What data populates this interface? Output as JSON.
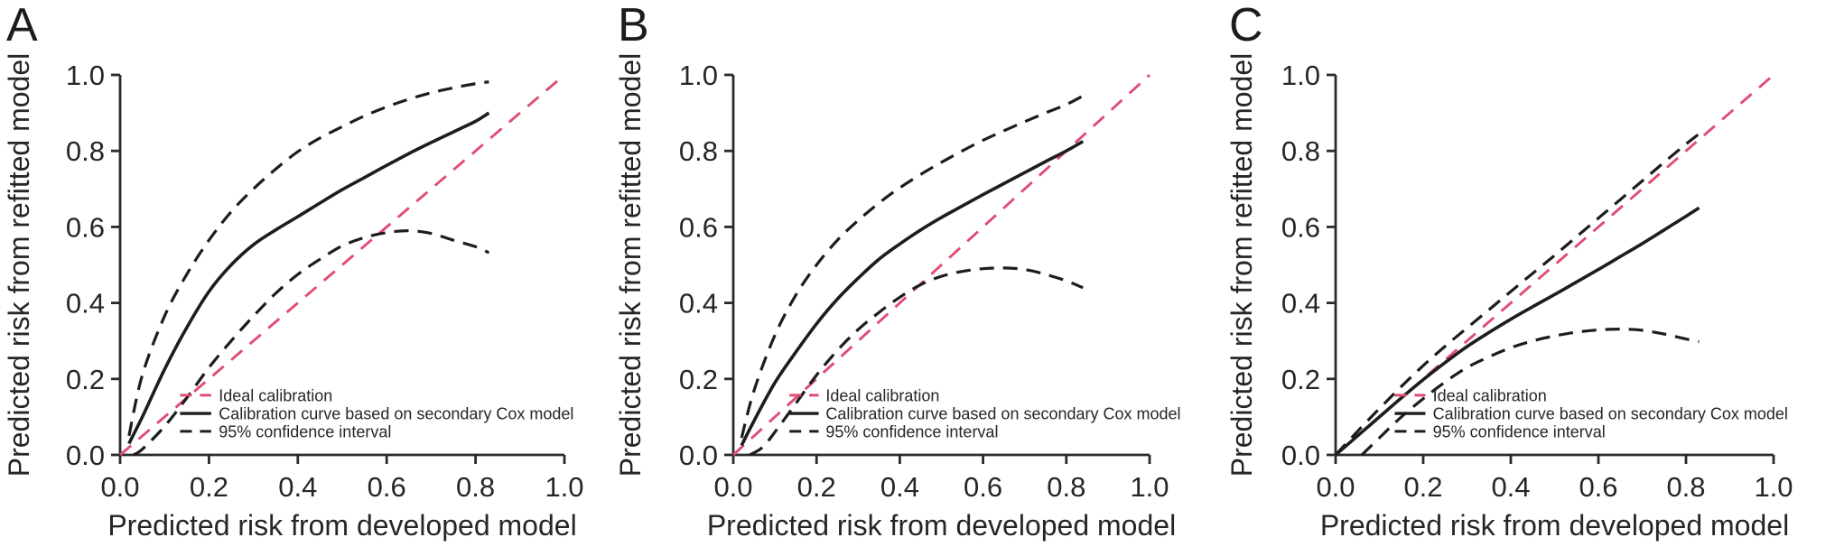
{
  "chart_data": [
    {
      "type": "line",
      "panel_label": "A",
      "xlabel": "Predicted risk from developed model",
      "ylabel": "Predicted risk from refitted model",
      "xlim": [
        0.0,
        1.0
      ],
      "ylim": [
        0.0,
        1.0
      ],
      "xticks": [
        0.0,
        0.2,
        0.4,
        0.6,
        0.8,
        1.0
      ],
      "xtick_labels": [
        "0.0",
        "0.2",
        "0.4",
        "0.6",
        "0.8",
        "1.0"
      ],
      "yticks": [
        0.0,
        0.2,
        0.4,
        0.6,
        0.8,
        1.0
      ],
      "ytick_labels": [
        "0.0",
        "0.2",
        "0.4",
        "0.6",
        "0.8",
        "1.0"
      ],
      "grid": false,
      "colors": {
        "ideal": "#df4d73",
        "curve": "#1d1d1d",
        "ci": "#1d1d1d"
      },
      "legend": {
        "position": "inside-bottom-left",
        "entries": [
          {
            "label": "Ideal calibration",
            "line": "dashed",
            "color": "#df4d73"
          },
          {
            "label": "Calibration curve based on secondary Cox model",
            "line": "solid",
            "color": "#1d1d1d"
          },
          {
            "label": "95% confidence interval",
            "line": "dashed",
            "color": "#1d1d1d"
          }
        ]
      },
      "series": [
        {
          "name": "Ideal calibration",
          "role": "ideal",
          "style": "dashed",
          "color": "#df4d73",
          "smooth": false,
          "points": [
            [
              0.0,
              0.0
            ],
            [
              1.0,
              1.0
            ]
          ]
        },
        {
          "name": "95% confidence interval (upper)",
          "role": "ci-upper",
          "style": "dashed",
          "color": "#1d1d1d",
          "smooth": true,
          "points": [
            [
              0.02,
              0.05
            ],
            [
              0.05,
              0.21
            ],
            [
              0.1,
              0.365
            ],
            [
              0.15,
              0.475
            ],
            [
              0.2,
              0.565
            ],
            [
              0.25,
              0.64
            ],
            [
              0.3,
              0.7
            ],
            [
              0.35,
              0.752
            ],
            [
              0.4,
              0.798
            ],
            [
              0.45,
              0.834
            ],
            [
              0.5,
              0.864
            ],
            [
              0.55,
              0.892
            ],
            [
              0.6,
              0.916
            ],
            [
              0.65,
              0.936
            ],
            [
              0.7,
              0.953
            ],
            [
              0.75,
              0.966
            ],
            [
              0.8,
              0.977
            ],
            [
              0.83,
              0.982
            ]
          ]
        },
        {
          "name": "95% confidence interval (lower)",
          "role": "ci-lower",
          "style": "dashed",
          "color": "#1d1d1d",
          "smooth": true,
          "points": [
            [
              0.03,
              0.0
            ],
            [
              0.05,
              0.015
            ],
            [
              0.1,
              0.075
            ],
            [
              0.15,
              0.15
            ],
            [
              0.2,
              0.23
            ],
            [
              0.25,
              0.3
            ],
            [
              0.3,
              0.365
            ],
            [
              0.35,
              0.425
            ],
            [
              0.4,
              0.475
            ],
            [
              0.45,
              0.515
            ],
            [
              0.5,
              0.55
            ],
            [
              0.55,
              0.572
            ],
            [
              0.6,
              0.585
            ],
            [
              0.65,
              0.59
            ],
            [
              0.7,
              0.583
            ],
            [
              0.75,
              0.565
            ],
            [
              0.8,
              0.548
            ],
            [
              0.83,
              0.532
            ]
          ]
        },
        {
          "name": "Calibration curve based on secondary Cox model",
          "role": "curve",
          "style": "solid",
          "color": "#1d1d1d",
          "smooth": true,
          "points": [
            [
              0.02,
              0.03
            ],
            [
              0.05,
              0.1
            ],
            [
              0.1,
              0.225
            ],
            [
              0.15,
              0.335
            ],
            [
              0.2,
              0.43
            ],
            [
              0.25,
              0.5
            ],
            [
              0.3,
              0.553
            ],
            [
              0.35,
              0.592
            ],
            [
              0.4,
              0.627
            ],
            [
              0.45,
              0.663
            ],
            [
              0.5,
              0.698
            ],
            [
              0.55,
              0.73
            ],
            [
              0.6,
              0.762
            ],
            [
              0.65,
              0.793
            ],
            [
              0.7,
              0.822
            ],
            [
              0.75,
              0.85
            ],
            [
              0.8,
              0.878
            ],
            [
              0.83,
              0.9
            ]
          ]
        }
      ]
    },
    {
      "type": "line",
      "panel_label": "B",
      "xlabel": "Predicted risk from developed model",
      "ylabel": "Predicted risk from refitted model",
      "xlim": [
        0.0,
        1.0
      ],
      "ylim": [
        0.0,
        1.0
      ],
      "xticks": [
        0.0,
        0.2,
        0.4,
        0.6,
        0.8,
        1.0
      ],
      "xtick_labels": [
        "0.0",
        "0.2",
        "0.4",
        "0.6",
        "0.8",
        "1.0"
      ],
      "yticks": [
        0.0,
        0.2,
        0.4,
        0.6,
        0.8,
        1.0
      ],
      "ytick_labels": [
        "0.0",
        "0.2",
        "0.4",
        "0.6",
        "0.8",
        "1.0"
      ],
      "grid": false,
      "colors": {
        "ideal": "#df4d73",
        "curve": "#1d1d1d",
        "ci": "#1d1d1d"
      },
      "legend": {
        "position": "inside-bottom-left",
        "entries": [
          {
            "label": "Ideal calibration",
            "line": "dashed",
            "color": "#df4d73"
          },
          {
            "label": "Calibration curve based on secondary Cox model",
            "line": "solid",
            "color": "#1d1d1d"
          },
          {
            "label": "95% confidence interval",
            "line": "dashed",
            "color": "#1d1d1d"
          }
        ]
      },
      "series": [
        {
          "name": "Ideal calibration",
          "role": "ideal",
          "style": "dashed",
          "color": "#df4d73",
          "smooth": false,
          "points": [
            [
              0.0,
              0.0
            ],
            [
              1.0,
              1.0
            ]
          ]
        },
        {
          "name": "95% confidence interval (upper)",
          "role": "ci-upper",
          "style": "dashed",
          "color": "#1d1d1d",
          "smooth": true,
          "points": [
            [
              0.02,
              0.045
            ],
            [
              0.05,
              0.17
            ],
            [
              0.1,
              0.315
            ],
            [
              0.15,
              0.42
            ],
            [
              0.2,
              0.5
            ],
            [
              0.25,
              0.565
            ],
            [
              0.3,
              0.617
            ],
            [
              0.35,
              0.663
            ],
            [
              0.4,
              0.703
            ],
            [
              0.45,
              0.738
            ],
            [
              0.5,
              0.77
            ],
            [
              0.55,
              0.8
            ],
            [
              0.6,
              0.828
            ],
            [
              0.65,
              0.853
            ],
            [
              0.7,
              0.877
            ],
            [
              0.75,
              0.9
            ],
            [
              0.8,
              0.922
            ],
            [
              0.84,
              0.945
            ]
          ]
        },
        {
          "name": "95% confidence interval (lower)",
          "role": "ci-lower",
          "style": "dashed",
          "color": "#1d1d1d",
          "smooth": true,
          "points": [
            [
              0.04,
              0.0
            ],
            [
              0.07,
              0.02
            ],
            [
              0.1,
              0.06
            ],
            [
              0.15,
              0.135
            ],
            [
              0.2,
              0.21
            ],
            [
              0.25,
              0.275
            ],
            [
              0.3,
              0.33
            ],
            [
              0.35,
              0.375
            ],
            [
              0.4,
              0.415
            ],
            [
              0.45,
              0.448
            ],
            [
              0.5,
              0.47
            ],
            [
              0.55,
              0.483
            ],
            [
              0.6,
              0.49
            ],
            [
              0.65,
              0.492
            ],
            [
              0.7,
              0.488
            ],
            [
              0.75,
              0.475
            ],
            [
              0.8,
              0.458
            ],
            [
              0.84,
              0.44
            ]
          ]
        },
        {
          "name": "Calibration curve based on secondary Cox model",
          "role": "curve",
          "style": "solid",
          "color": "#1d1d1d",
          "smooth": true,
          "points": [
            [
              0.02,
              0.025
            ],
            [
              0.05,
              0.09
            ],
            [
              0.1,
              0.19
            ],
            [
              0.15,
              0.27
            ],
            [
              0.2,
              0.345
            ],
            [
              0.25,
              0.41
            ],
            [
              0.3,
              0.465
            ],
            [
              0.35,
              0.515
            ],
            [
              0.4,
              0.555
            ],
            [
              0.45,
              0.592
            ],
            [
              0.5,
              0.625
            ],
            [
              0.55,
              0.655
            ],
            [
              0.6,
              0.685
            ],
            [
              0.65,
              0.714
            ],
            [
              0.7,
              0.743
            ],
            [
              0.75,
              0.772
            ],
            [
              0.8,
              0.8
            ],
            [
              0.84,
              0.825
            ]
          ]
        }
      ]
    },
    {
      "type": "line",
      "panel_label": "C",
      "xlabel": "Predicted risk from developed model",
      "ylabel": "Predicted risk from refitted model",
      "xlim": [
        0.0,
        1.0
      ],
      "ylim": [
        0.0,
        1.0
      ],
      "xticks": [
        0.0,
        0.2,
        0.4,
        0.6,
        0.8,
        1.0
      ],
      "xtick_labels": [
        "0.0",
        "0.2",
        "0.4",
        "0.6",
        "0.8",
        "1.0"
      ],
      "yticks": [
        0.0,
        0.2,
        0.4,
        0.6,
        0.8,
        1.0
      ],
      "ytick_labels": [
        "0.0",
        "0.2",
        "0.4",
        "0.6",
        "0.8",
        "1.0"
      ],
      "grid": false,
      "colors": {
        "ideal": "#df4d73",
        "curve": "#1d1d1d",
        "ci": "#1d1d1d"
      },
      "legend": {
        "position": "inside-bottom-left",
        "entries": [
          {
            "label": "Ideal calibration",
            "line": "dashed",
            "color": "#df4d73"
          },
          {
            "label": "Calibration curve based on secondary Cox model",
            "line": "solid",
            "color": "#1d1d1d"
          },
          {
            "label": "95% confidence interval",
            "line": "dashed",
            "color": "#1d1d1d"
          }
        ]
      },
      "series": [
        {
          "name": "Ideal calibration",
          "role": "ideal",
          "style": "dashed",
          "color": "#df4d73",
          "smooth": false,
          "points": [
            [
              0.0,
              0.0
            ],
            [
              1.0,
              1.0
            ]
          ]
        },
        {
          "name": "95% confidence interval (upper)",
          "role": "ci-upper",
          "style": "dashed",
          "color": "#1d1d1d",
          "smooth": true,
          "points": [
            [
              0.0,
              0.0
            ],
            [
              0.05,
              0.062
            ],
            [
              0.1,
              0.122
            ],
            [
              0.15,
              0.18
            ],
            [
              0.2,
              0.235
            ],
            [
              0.25,
              0.286
            ],
            [
              0.3,
              0.334
            ],
            [
              0.35,
              0.382
            ],
            [
              0.4,
              0.43
            ],
            [
              0.45,
              0.478
            ],
            [
              0.5,
              0.525
            ],
            [
              0.55,
              0.574
            ],
            [
              0.6,
              0.623
            ],
            [
              0.65,
              0.672
            ],
            [
              0.7,
              0.721
            ],
            [
              0.75,
              0.77
            ],
            [
              0.8,
              0.818
            ],
            [
              0.83,
              0.845
            ]
          ]
        },
        {
          "name": "95% confidence interval (lower)",
          "role": "ci-lower",
          "style": "dashed",
          "color": "#1d1d1d",
          "smooth": true,
          "points": [
            [
              0.06,
              0.0
            ],
            [
              0.1,
              0.045
            ],
            [
              0.15,
              0.1
            ],
            [
              0.2,
              0.148
            ],
            [
              0.25,
              0.192
            ],
            [
              0.3,
              0.23
            ],
            [
              0.35,
              0.258
            ],
            [
              0.4,
              0.282
            ],
            [
              0.45,
              0.3
            ],
            [
              0.5,
              0.313
            ],
            [
              0.55,
              0.323
            ],
            [
              0.6,
              0.329
            ],
            [
              0.65,
              0.331
            ],
            [
              0.7,
              0.328
            ],
            [
              0.75,
              0.318
            ],
            [
              0.8,
              0.305
            ],
            [
              0.83,
              0.298
            ]
          ]
        },
        {
          "name": "Calibration curve based on secondary Cox model",
          "role": "curve",
          "style": "solid",
          "color": "#1d1d1d",
          "smooth": true,
          "points": [
            [
              0.0,
              0.0
            ],
            [
              0.05,
              0.05
            ],
            [
              0.1,
              0.1
            ],
            [
              0.15,
              0.15
            ],
            [
              0.2,
              0.198
            ],
            [
              0.25,
              0.243
            ],
            [
              0.3,
              0.285
            ],
            [
              0.35,
              0.322
            ],
            [
              0.4,
              0.357
            ],
            [
              0.45,
              0.39
            ],
            [
              0.5,
              0.422
            ],
            [
              0.55,
              0.455
            ],
            [
              0.6,
              0.488
            ],
            [
              0.65,
              0.522
            ],
            [
              0.7,
              0.556
            ],
            [
              0.75,
              0.592
            ],
            [
              0.8,
              0.628
            ],
            [
              0.83,
              0.65
            ]
          ]
        }
      ]
    }
  ]
}
